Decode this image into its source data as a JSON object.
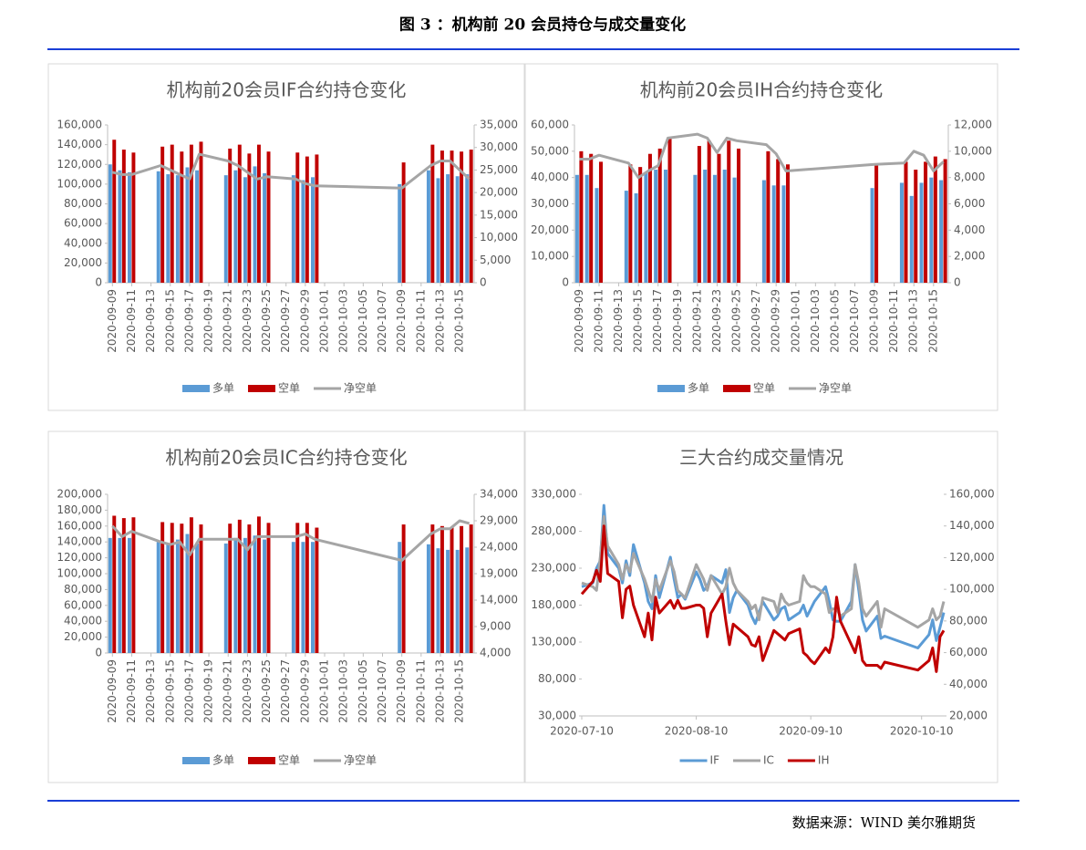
{
  "header": {
    "title": "图 3 ：机构前 20 会员持仓与成交量变化"
  },
  "source": "数据来源：WIND 美尔雅期货",
  "chart_data": [
    {
      "type": "bar",
      "title": "机构前20会员IF合约持仓变化",
      "x": [
        "2020-09-09",
        "2020-09-10",
        "2020-09-11",
        "2020-09-14",
        "2020-09-15",
        "2020-09-16",
        "2020-09-17",
        "2020-09-18",
        "2020-09-21",
        "2020-09-22",
        "2020-09-23",
        "2020-09-24",
        "2020-09-25",
        "2020-09-28",
        "2020-09-29",
        "2020-09-30",
        "2020-10-09",
        "2020-10-12",
        "2020-10-13",
        "2020-10-14",
        "2020-10-15",
        "2020-10-16"
      ],
      "xlim": [
        "2020-09-09",
        "2020-10-16"
      ],
      "xticks": [
        "2020-09-09",
        "2020-09-11",
        "2020-09-13",
        "2020-09-15",
        "2020-09-17",
        "2020-09-19",
        "2020-09-21",
        "2020-09-23",
        "2020-09-25",
        "2020-09-27",
        "2020-09-29",
        "2020-10-01",
        "2020-10-03",
        "2020-10-05",
        "2020-10-07",
        "2020-10-09",
        "2020-10-11",
        "2020-10-13",
        "2020-10-15"
      ],
      "ylim": [
        0,
        160000
      ],
      "yticks": [
        0,
        {
          "value": 20000,
          "label": "20,000"
        },
        {
          "value": 40000,
          "label": "40,000"
        },
        {
          "value": 60000,
          "label": "60,000"
        },
        {
          "value": 80000,
          "label": "80,000"
        },
        {
          "value": 100000,
          "label": "100,000"
        },
        {
          "value": 120000,
          "label": "120,000"
        },
        {
          "value": 140000,
          "label": "140,000"
        },
        {
          "value": 160000,
          "label": "160,000"
        }
      ],
      "y2lim": [
        0,
        35000
      ],
      "y2ticks": [
        0,
        {
          "value": 5000,
          "label": "5,000"
        },
        {
          "value": 10000,
          "label": "10,000"
        },
        {
          "value": 15000,
          "label": "15,000"
        },
        {
          "value": 20000,
          "label": "20,000"
        },
        {
          "value": 25000,
          "label": "25,000"
        },
        {
          "value": 30000,
          "label": "30,000"
        },
        {
          "value": 35000,
          "label": "35,000"
        }
      ],
      "series": [
        {
          "name": "多单",
          "color": "#5b9bd5",
          "values": [
            120000,
            114000,
            112000,
            113000,
            110000,
            109000,
            117000,
            114000,
            109000,
            114000,
            107000,
            118000,
            111000,
            109000,
            104000,
            107000,
            100000,
            114000,
            106000,
            110000,
            108000,
            110000
          ]
        },
        {
          "name": "空单",
          "color": "#c00000",
          "values": [
            145000,
            135000,
            132000,
            138000,
            140000,
            133000,
            140000,
            143000,
            136000,
            140000,
            131000,
            140000,
            133000,
            132000,
            128000,
            130000,
            122000,
            140000,
            134000,
            134000,
            133000,
            135000
          ]
        },
        {
          "name": "净空单",
          "color": "#a5a5a5",
          "type": "line",
          "axis": "y2",
          "values": [
            24500,
            24000,
            24000,
            26000,
            25000,
            24000,
            23000,
            28500,
            27000,
            26000,
            24500,
            23000,
            23500,
            23000,
            22000,
            21500,
            21000,
            26000,
            27000,
            27000,
            25000,
            23000
          ]
        }
      ]
    },
    {
      "type": "bar",
      "title": "机构前20会员IH合约持仓变化",
      "x": [
        "2020-09-09",
        "2020-09-10",
        "2020-09-11",
        "2020-09-14",
        "2020-09-15",
        "2020-09-16",
        "2020-09-17",
        "2020-09-18",
        "2020-09-21",
        "2020-09-22",
        "2020-09-23",
        "2020-09-24",
        "2020-09-25",
        "2020-09-28",
        "2020-09-29",
        "2020-09-30",
        "2020-10-09",
        "2020-10-12",
        "2020-10-13",
        "2020-10-14",
        "2020-10-15",
        "2020-10-16"
      ],
      "xlim": [
        "2020-09-09",
        "2020-10-16"
      ],
      "xticks": [
        "2020-09-09",
        "2020-09-11",
        "2020-09-13",
        "2020-09-15",
        "2020-09-17",
        "2020-09-19",
        "2020-09-21",
        "2020-09-23",
        "2020-09-25",
        "2020-09-27",
        "2020-09-29",
        "2020-10-01",
        "2020-10-03",
        "2020-10-05",
        "2020-10-07",
        "2020-10-09",
        "2020-10-11",
        "2020-10-13",
        "2020-10-15"
      ],
      "ylim": [
        0,
        60000
      ],
      "yticks": [
        0,
        {
          "value": 10000,
          "label": "10,000"
        },
        {
          "value": 20000,
          "label": "20,000"
        },
        {
          "value": 30000,
          "label": "30,000"
        },
        {
          "value": 40000,
          "label": "40,000"
        },
        {
          "value": 50000,
          "label": "50,000"
        },
        {
          "value": 60000,
          "label": "60,000"
        }
      ],
      "y2lim": [
        0,
        12000
      ],
      "y2ticks": [
        0,
        {
          "value": 2000,
          "label": "2,000"
        },
        {
          "value": 4000,
          "label": "4,000"
        },
        {
          "value": 6000,
          "label": "6,000"
        },
        {
          "value": 8000,
          "label": "8,000"
        },
        {
          "value": 10000,
          "label": "10,000"
        },
        {
          "value": 12000,
          "label": "12,000"
        }
      ],
      "series": [
        {
          "name": "多单",
          "color": "#5b9bd5",
          "values": [
            41000,
            41000,
            36000,
            35000,
            34000,
            42000,
            43000,
            43000,
            41000,
            43000,
            41000,
            43000,
            40000,
            39000,
            37000,
            37000,
            36000,
            38000,
            33000,
            38000,
            40000,
            39000
          ]
        },
        {
          "name": "空单",
          "color": "#c00000",
          "values": [
            50000,
            49000,
            46000,
            45000,
            44000,
            49000,
            51000,
            55000,
            52000,
            54000,
            49000,
            54000,
            51000,
            50000,
            47000,
            45000,
            45000,
            46000,
            43000,
            46000,
            48000,
            47000
          ]
        },
        {
          "name": "净空单",
          "color": "#a5a5a5",
          "type": "line",
          "axis": "y2",
          "values": [
            9400,
            9400,
            9700,
            9100,
            8000,
            8500,
            8900,
            11000,
            11300,
            11000,
            9900,
            11000,
            10800,
            10500,
            9800,
            8500,
            9000,
            9100,
            10000,
            9700,
            8500,
            9200
          ]
        }
      ]
    },
    {
      "type": "bar",
      "title": "机构前20会员IC合约持仓变化",
      "x": [
        "2020-09-09",
        "2020-09-10",
        "2020-09-11",
        "2020-09-14",
        "2020-09-15",
        "2020-09-16",
        "2020-09-17",
        "2020-09-18",
        "2020-09-21",
        "2020-09-22",
        "2020-09-23",
        "2020-09-24",
        "2020-09-25",
        "2020-09-28",
        "2020-09-29",
        "2020-09-30",
        "2020-10-09",
        "2020-10-12",
        "2020-10-13",
        "2020-10-14",
        "2020-10-15",
        "2020-10-16"
      ],
      "xlim": [
        "2020-09-09",
        "2020-10-16"
      ],
      "xticks": [
        "2020-09-09",
        "2020-09-11",
        "2020-09-13",
        "2020-09-15",
        "2020-09-17",
        "2020-09-19",
        "2020-09-21",
        "2020-09-23",
        "2020-09-25",
        "2020-09-27",
        "2020-09-29",
        "2020-10-01",
        "2020-10-03",
        "2020-10-05",
        "2020-10-07",
        "2020-10-09",
        "2020-10-11",
        "2020-10-13",
        "2020-10-15"
      ],
      "ylim": [
        0,
        200000
      ],
      "yticks": [
        0,
        {
          "value": 20000,
          "label": "20,000"
        },
        {
          "value": 40000,
          "label": "40,000"
        },
        {
          "value": 60000,
          "label": "60,000"
        },
        {
          "value": 80000,
          "label": "80,000"
        },
        {
          "value": 100000,
          "label": "100,000"
        },
        {
          "value": 120000,
          "label": "120,000"
        },
        {
          "value": 140000,
          "label": "140,000"
        },
        {
          "value": 160000,
          "label": "160,000"
        },
        {
          "value": 180000,
          "label": "180,000"
        },
        {
          "value": 200000,
          "label": "200,000"
        }
      ],
      "y2lim": [
        4000,
        34000
      ],
      "y2ticks": [
        {
          "value": 4000,
          "label": "4,000"
        },
        {
          "value": 9000,
          "label": "9,000"
        },
        {
          "value": 14000,
          "label": "14,000"
        },
        {
          "value": 19000,
          "label": "19,000"
        },
        {
          "value": 24000,
          "label": "24,000"
        },
        {
          "value": 29000,
          "label": "29,000"
        },
        {
          "value": 34000,
          "label": "34,000"
        }
      ],
      "series": [
        {
          "name": "多单",
          "color": "#5b9bd5",
          "values": [
            145000,
            145000,
            145000,
            140000,
            137000,
            143000,
            150000,
            138000,
            138000,
            145000,
            145000,
            148000,
            143000,
            140000,
            140000,
            140000,
            140000,
            137000,
            132000,
            130000,
            130000,
            133000
          ]
        },
        {
          "name": "空单",
          "color": "#c00000",
          "values": [
            173000,
            170000,
            171000,
            165000,
            164000,
            163000,
            171000,
            162000,
            163000,
            168000,
            162000,
            172000,
            164000,
            164000,
            164000,
            158000,
            162000,
            162000,
            160000,
            158000,
            160000,
            162000
          ]
        },
        {
          "name": "净空单",
          "color": "#a5a5a5",
          "type": "line",
          "axis": "y2",
          "values": [
            28000,
            26000,
            27000,
            25000,
            24500,
            25000,
            22500,
            25500,
            25500,
            25500,
            23500,
            26000,
            26000,
            26000,
            26500,
            25500,
            21500,
            26500,
            27500,
            27500,
            29000,
            28500
          ]
        }
      ]
    },
    {
      "type": "line",
      "title": "三大合约成交量情况",
      "x": [
        "2020-07-10",
        "2020-07-13",
        "2020-07-14",
        "2020-07-15",
        "2020-07-16",
        "2020-07-17",
        "2020-07-20",
        "2020-07-21",
        "2020-07-22",
        "2020-07-23",
        "2020-07-24",
        "2020-07-27",
        "2020-07-28",
        "2020-07-29",
        "2020-07-30",
        "2020-07-31",
        "2020-08-03",
        "2020-08-04",
        "2020-08-05",
        "2020-08-06",
        "2020-08-07",
        "2020-08-10",
        "2020-08-11",
        "2020-08-12",
        "2020-08-13",
        "2020-08-14",
        "2020-08-17",
        "2020-08-18",
        "2020-08-19",
        "2020-08-20",
        "2020-08-21",
        "2020-08-24",
        "2020-08-25",
        "2020-08-26",
        "2020-08-27",
        "2020-08-28",
        "2020-08-31",
        "2020-09-01",
        "2020-09-02",
        "2020-09-03",
        "2020-09-04",
        "2020-09-07",
        "2020-09-08",
        "2020-09-09",
        "2020-09-10",
        "2020-09-11",
        "2020-09-14",
        "2020-09-15",
        "2020-09-16",
        "2020-09-17",
        "2020-09-18",
        "2020-09-21",
        "2020-09-22",
        "2020-09-23",
        "2020-09-24",
        "2020-09-25",
        "2020-09-28",
        "2020-09-29",
        "2020-09-30",
        "2020-10-09",
        "2020-10-12",
        "2020-10-13",
        "2020-10-14",
        "2020-10-15",
        "2020-10-16"
      ],
      "xlim": [
        "2020-07-10",
        "2020-10-16"
      ],
      "xticks": [
        "2020-07-10",
        "2020-08-10",
        "2020-09-10",
        "2020-10-10"
      ],
      "ylim": [
        30000,
        330000
      ],
      "yticks": [
        {
          "value": 30000,
          "label": "30,000"
        },
        {
          "value": 80000,
          "label": "80,000"
        },
        {
          "value": 130000,
          "label": "130,000"
        },
        {
          "value": 180000,
          "label": "180,000"
        },
        {
          "value": 230000,
          "label": "230,000"
        },
        {
          "value": 280000,
          "label": "280,000"
        },
        {
          "value": 330000,
          "label": "330,000"
        }
      ],
      "y2lim": [
        20000,
        160000
      ],
      "y2ticks": [
        {
          "value": 20000,
          "label": "20,000"
        },
        {
          "value": 40000,
          "label": "40,000"
        },
        {
          "value": 60000,
          "label": "60,000"
        },
        {
          "value": 80000,
          "label": "80,000"
        },
        {
          "value": 100000,
          "label": "100,000"
        },
        {
          "value": 120000,
          "label": "120,000"
        },
        {
          "value": 140000,
          "label": "140,000"
        },
        {
          "value": 160000,
          "label": "160,000"
        }
      ],
      "series": [
        {
          "name": "IF",
          "color": "#5b9bd5",
          "values": [
            205000,
            210000,
            230000,
            240000,
            315000,
            250000,
            230000,
            210000,
            240000,
            220000,
            262000,
            210000,
            185000,
            175000,
            220000,
            190000,
            245000,
            215000,
            190000,
            195000,
            188000,
            225000,
            215000,
            200000,
            205000,
            220000,
            210000,
            228000,
            170000,
            190000,
            200000,
            180000,
            165000,
            155000,
            170000,
            185000,
            160000,
            165000,
            175000,
            178000,
            160000,
            170000,
            180000,
            165000,
            175000,
            185000,
            205000,
            185000,
            160000,
            158000,
            158000,
            185000,
            235000,
            200000,
            160000,
            145000,
            165000,
            135000,
            138000,
            122000,
            140000,
            160000,
            132000,
            150000,
            170000
          ]
        },
        {
          "name": "IC",
          "color": "#a5a5a5",
          "values": [
            210000,
            205000,
            200000,
            245000,
            300000,
            260000,
            235000,
            215000,
            235000,
            225000,
            250000,
            215000,
            200000,
            185000,
            215000,
            200000,
            240000,
            225000,
            200000,
            195000,
            190000,
            235000,
            225000,
            215000,
            200000,
            220000,
            195000,
            205000,
            230000,
            210000,
            200000,
            185000,
            175000,
            180000,
            160000,
            190000,
            185000,
            170000,
            195000,
            185000,
            180000,
            185000,
            220000,
            210000,
            205000,
            205000,
            195000,
            170000,
            175000,
            175000,
            165000,
            175000,
            235000,
            210000,
            175000,
            165000,
            185000,
            150000,
            175000,
            150000,
            160000,
            175000,
            160000,
            165000,
            185000
          ]
        },
        {
          "name": "IH",
          "color": "#c00000",
          "axis": "y2",
          "values": [
            97000,
            105000,
            112000,
            105000,
            140000,
            110000,
            105000,
            82000,
            100000,
            102000,
            90000,
            70000,
            85000,
            68000,
            95000,
            85000,
            93000,
            88000,
            93000,
            88000,
            88000,
            90000,
            90000,
            88000,
            70000,
            85000,
            97000,
            80000,
            65000,
            78000,
            76000,
            70000,
            65000,
            64000,
            70000,
            55000,
            74000,
            72000,
            70000,
            68000,
            72000,
            75000,
            60000,
            58000,
            55000,
            53000,
            63000,
            60000,
            70000,
            95000,
            80000,
            65000,
            60000,
            70000,
            55000,
            52000,
            52000,
            50000,
            54000,
            49000,
            55000,
            63000,
            48000,
            70000,
            74000
          ]
        }
      ]
    }
  ]
}
